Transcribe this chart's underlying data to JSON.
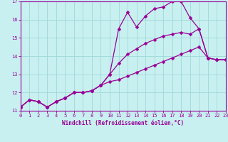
{
  "xlabel": "Windchill (Refroidissement éolien,°C)",
  "xlim": [
    0,
    23
  ],
  "ylim": [
    11,
    17
  ],
  "xticks": [
    0,
    1,
    2,
    3,
    4,
    5,
    6,
    7,
    8,
    9,
    10,
    11,
    12,
    13,
    14,
    15,
    16,
    17,
    18,
    19,
    20,
    21,
    22,
    23
  ],
  "yticks": [
    11,
    12,
    13,
    14,
    15,
    16,
    17
  ],
  "bg_color": "#c8f0f0",
  "grid_color": "#a0d8d8",
  "line_color": "#990099",
  "line1_x": [
    0,
    1,
    2,
    3,
    4,
    5,
    6,
    7,
    8,
    9,
    10,
    11,
    12,
    13,
    14,
    15,
    16,
    17,
    18,
    19,
    20,
    21,
    22,
    23
  ],
  "line1_y": [
    11.2,
    11.6,
    11.5,
    11.2,
    11.5,
    11.7,
    12.0,
    12.0,
    12.1,
    12.4,
    13.0,
    15.5,
    16.4,
    15.6,
    16.2,
    16.6,
    16.7,
    17.0,
    17.0,
    16.1,
    15.5,
    13.9,
    13.8,
    13.8
  ],
  "line2_x": [
    0,
    1,
    2,
    3,
    4,
    5,
    6,
    7,
    8,
    9,
    10,
    11,
    12,
    13,
    14,
    15,
    16,
    17,
    18,
    19,
    20,
    21,
    22,
    23
  ],
  "line2_y": [
    11.2,
    11.6,
    11.5,
    11.2,
    11.5,
    11.7,
    12.0,
    12.0,
    12.1,
    12.4,
    13.0,
    13.6,
    14.1,
    14.4,
    14.7,
    14.9,
    15.1,
    15.2,
    15.3,
    15.2,
    15.5,
    13.9,
    13.8,
    13.8
  ],
  "line3_x": [
    0,
    1,
    2,
    3,
    4,
    5,
    6,
    7,
    8,
    9,
    10,
    11,
    12,
    13,
    14,
    15,
    16,
    17,
    18,
    19,
    20,
    21,
    22,
    23
  ],
  "line3_y": [
    11.2,
    11.6,
    11.5,
    11.2,
    11.5,
    11.7,
    12.0,
    12.0,
    12.1,
    12.4,
    12.6,
    12.7,
    12.9,
    13.1,
    13.3,
    13.5,
    13.7,
    13.9,
    14.1,
    14.3,
    14.5,
    13.9,
    13.8,
    13.8
  ],
  "label_fontsize": 5.5,
  "tick_fontsize": 5.0
}
